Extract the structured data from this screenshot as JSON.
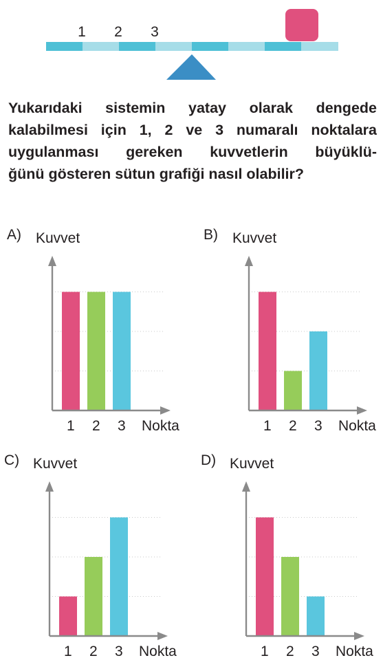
{
  "lever": {
    "point_labels": [
      "1",
      "2",
      "3"
    ],
    "colors": {
      "segment_dark": "#4ec0d6",
      "segment_light": "#a6dde8",
      "fulcrum": "#3b8ec5",
      "weight": "#e0507e"
    }
  },
  "question": {
    "lines": [
      "Yukarıdaki sistemin yatay olarak dengede",
      "kalabilmesi için 1, 2 ve 3 numaralı noktalara",
      "uygulanması gereken kuvvetlerin büyüklü-",
      "ğünü gösteren sütun grafiği nasıl olabilir?"
    ]
  },
  "options": [
    {
      "letter": "A)"
    },
    {
      "letter": "B)"
    },
    {
      "letter": "C)"
    },
    {
      "letter": "D)"
    }
  ],
  "chart_data": [
    {
      "type": "bar",
      "categories": [
        "1",
        "2",
        "3"
      ],
      "values": [
        3,
        3,
        3
      ],
      "ylim": [
        0,
        3
      ],
      "grid": true,
      "xlabel": "Nokta",
      "ylabel": "Kuvvet",
      "colors": [
        "#e0507e",
        "#96cc5a",
        "#5ac6de"
      ]
    },
    {
      "type": "bar",
      "categories": [
        "1",
        "2",
        "3"
      ],
      "values": [
        3,
        1,
        2
      ],
      "ylim": [
        0,
        3
      ],
      "grid": true,
      "xlabel": "Nokta",
      "ylabel": "Kuvvet",
      "colors": [
        "#e0507e",
        "#96cc5a",
        "#5ac6de"
      ]
    },
    {
      "type": "bar",
      "categories": [
        "1",
        "2",
        "3"
      ],
      "values": [
        1,
        2,
        3
      ],
      "ylim": [
        0,
        3
      ],
      "grid": true,
      "xlabel": "Nokta",
      "ylabel": "Kuvvet",
      "colors": [
        "#e0507e",
        "#96cc5a",
        "#5ac6de"
      ]
    },
    {
      "type": "bar",
      "categories": [
        "1",
        "2",
        "3"
      ],
      "values": [
        3,
        2,
        1
      ],
      "ylim": [
        0,
        3
      ],
      "grid": true,
      "xlabel": "Nokta",
      "ylabel": "Kuvvet",
      "colors": [
        "#e0507e",
        "#96cc5a",
        "#5ac6de"
      ]
    }
  ]
}
